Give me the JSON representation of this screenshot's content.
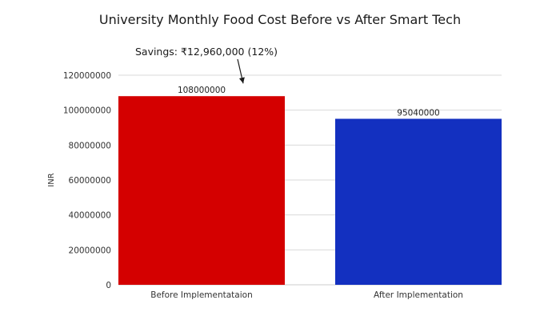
{
  "chart_data": {
    "type": "bar",
    "title": "University Monthly Food Cost Before vs After Smart Tech",
    "xlabel": "",
    "ylabel": "INR",
    "categories": [
      "Before Implementataion",
      "After Implementation"
    ],
    "values": [
      108000000,
      95040000
    ],
    "data_labels": [
      "108000000",
      "95040000"
    ],
    "bar_colors": [
      "#d40000",
      "#1330c0"
    ],
    "ylim": [
      0,
      120000000
    ],
    "y_ticks": [
      0,
      20000000,
      40000000,
      60000000,
      80000000,
      100000000,
      120000000
    ],
    "y_tick_labels": [
      "0",
      "20000000",
      "40000000",
      "60000000",
      "80000000",
      "100000000",
      "120000000"
    ],
    "grid": true,
    "annotation": {
      "text": "Savings: ₹12,960,000 (12%)",
      "points_to_category": 0
    }
  }
}
